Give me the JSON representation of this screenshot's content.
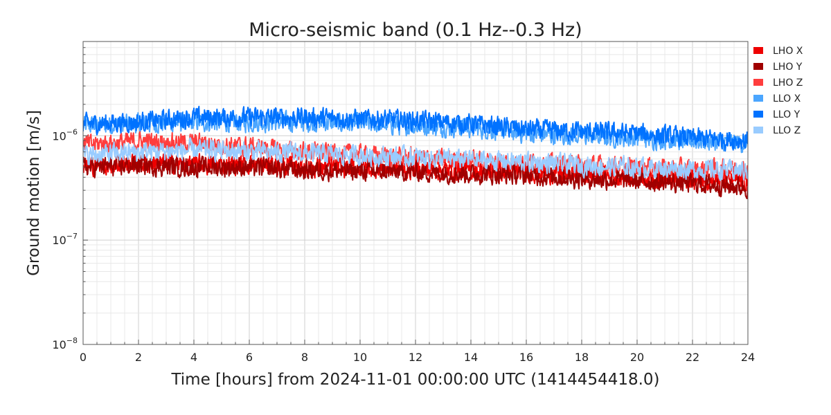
{
  "chart_data": {
    "type": "line",
    "title": "Micro-seismic band (0.1 Hz--0.3 Hz)",
    "xlabel": "Time [hours] from 2024-11-01 00:00:00 UTC (1414454418.0)",
    "ylabel": "Ground motion [m/s]",
    "xlim": [
      0,
      24
    ],
    "ylim": [
      1e-08,
      8e-06
    ],
    "yscale": "log",
    "grid": true,
    "legend_position": "right",
    "x_ticks": [
      0,
      2,
      4,
      6,
      8,
      10,
      12,
      14,
      16,
      18,
      20,
      22,
      24
    ],
    "x_tick_labels": [
      "0",
      "2",
      "4",
      "6",
      "8",
      "10",
      "12",
      "14",
      "16",
      "18",
      "20",
      "22",
      "24"
    ],
    "y_ticks": [
      1e-08,
      1e-07,
      1e-06
    ],
    "y_tick_labels": [
      "10",
      "10",
      "10"
    ],
    "y_tick_exponents": [
      "−8",
      "−7",
      "−6"
    ],
    "series": [
      {
        "name": "LHO X",
        "color": "#ee0000",
        "x": [
          0,
          2,
          4,
          6,
          8,
          10,
          12,
          14,
          16,
          18,
          20,
          22,
          24
        ],
        "values": [
          5.2e-07,
          5.5e-07,
          5.3e-07,
          5.3e-07,
          5e-07,
          4.9e-07,
          4.8e-07,
          4.6e-07,
          4.5e-07,
          4.2e-07,
          4e-07,
          3.8e-07,
          3.7e-07
        ]
      },
      {
        "name": "LHO Y",
        "color": "#a00000",
        "x": [
          0,
          2,
          4,
          6,
          8,
          10,
          12,
          14,
          16,
          18,
          20,
          22,
          24
        ],
        "values": [
          5e-07,
          5.2e-07,
          5e-07,
          5e-07,
          4.7e-07,
          4.6e-07,
          4.5e-07,
          4.3e-07,
          4.2e-07,
          3.9e-07,
          3.7e-07,
          3.5e-07,
          3.2e-07
        ]
      },
      {
        "name": "LHO Z",
        "color": "#ff3d3d",
        "x": [
          0,
          2,
          4,
          6,
          8,
          10,
          12,
          14,
          16,
          18,
          20,
          22,
          24
        ],
        "values": [
          8.2e-07,
          8.8e-07,
          8.5e-07,
          7.8e-07,
          7e-07,
          6.6e-07,
          6.1e-07,
          5.8e-07,
          5.5e-07,
          5.2e-07,
          5e-07,
          4.8e-07,
          4.7e-07
        ]
      },
      {
        "name": "LLO X",
        "color": "#4ba6ff",
        "x": [
          0,
          2,
          4,
          6,
          8,
          10,
          12,
          14,
          16,
          18,
          20,
          22,
          24
        ],
        "values": [
          1.25e-06,
          1.3e-06,
          1.35e-06,
          1.35e-06,
          1.35e-06,
          1.3e-06,
          1.25e-06,
          1.2e-06,
          1.05e-06,
          1e-06,
          9.5e-07,
          9e-07,
          8.5e-07
        ]
      },
      {
        "name": "LLO Y",
        "color": "#0072ff",
        "x": [
          0,
          2,
          4,
          6,
          8,
          10,
          12,
          14,
          16,
          18,
          20,
          22,
          24
        ],
        "values": [
          1.3e-06,
          1.35e-06,
          1.5e-06,
          1.5e-06,
          1.5e-06,
          1.45e-06,
          1.4e-06,
          1.3e-06,
          1.15e-06,
          1.1e-06,
          1.05e-06,
          9.5e-07,
          9e-07
        ]
      },
      {
        "name": "LLO Z",
        "color": "#99ccff",
        "x": [
          0,
          2,
          4,
          6,
          8,
          10,
          12,
          14,
          16,
          18,
          20,
          22,
          24
        ],
        "values": [
          6.5e-07,
          7e-07,
          7.3e-07,
          7.1e-07,
          6.8e-07,
          6.5e-07,
          6.2e-07,
          5.9e-07,
          5.6e-07,
          5.2e-07,
          5e-07,
          4.8e-07,
          4.6e-07
        ]
      }
    ]
  }
}
